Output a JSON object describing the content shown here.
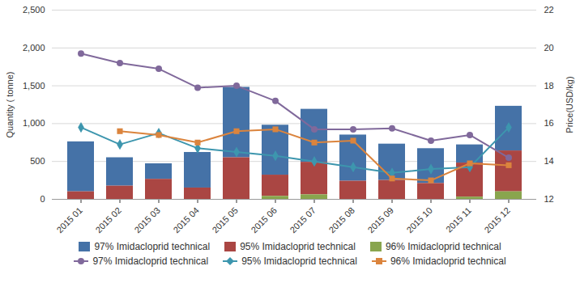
{
  "chart_data": {
    "type": "bar",
    "stacked": true,
    "grid": true,
    "legend": "bottom",
    "y_label": "Quantity ( tonne)",
    "y2_label": "Price(USD/kg)",
    "categories": [
      "2015 01",
      "2015 02",
      "2015 03",
      "2015 04",
      "2015 05",
      "2015 06",
      "2015 07",
      "2015 08",
      "2015 09",
      "2015 10",
      "2015 11",
      "2015 12"
    ],
    "ylim": [
      0,
      2500
    ],
    "yticks": [
      0,
      500,
      {
        "value": 1000,
        "label": "1,000"
      },
      {
        "value": 1500,
        "label": "1,500"
      },
      {
        "value": 2000,
        "label": "2,000"
      },
      {
        "value": 2500,
        "label": "2,500"
      }
    ],
    "y2lim": [
      12,
      22
    ],
    "y2ticks": [
      12,
      14,
      16,
      18,
      20,
      22
    ],
    "series": [
      {
        "name": "97% Imidacloprid technical",
        "type": "bar",
        "color": "#4572A7",
        "values": [
          660,
          375,
          205,
          470,
          930,
          660,
          700,
          610,
          480,
          460,
          240,
          590
        ]
      },
      {
        "name": "95% Imidacloprid technical",
        "type": "bar",
        "color": "#AA4643",
        "values": [
          100,
          175,
          265,
          150,
          550,
          280,
          430,
          240,
          250,
          210,
          450,
          540
        ]
      },
      {
        "name": "96% Imidacloprid technical",
        "type": "bar",
        "color": "#89A54E",
        "values": [
          0,
          0,
          0,
          0,
          0,
          40,
          60,
          0,
          0,
          0,
          30,
          100
        ]
      },
      {
        "name": "97% Imidacloprid technical",
        "type": "line",
        "axis": "y2",
        "marker": "circle",
        "color": "#80699B",
        "values": [
          19.7,
          19.2,
          18.9,
          17.9,
          18.0,
          17.2,
          15.7,
          15.7,
          15.75,
          15.1,
          15.4,
          14.2
        ]
      },
      {
        "name": "95% Imidacloprid technical",
        "type": "line",
        "axis": "y2",
        "marker": "diamond",
        "color": "#3D96AE",
        "values": [
          15.8,
          14.9,
          15.5,
          14.7,
          14.5,
          14.3,
          14.0,
          13.7,
          13.4,
          13.6,
          13.7,
          15.8
        ]
      },
      {
        "name": "96% Imidacloprid technical",
        "type": "line",
        "axis": "y2",
        "marker": "square",
        "color": "#DB843D",
        "values": [
          null,
          15.6,
          15.4,
          15.0,
          15.6,
          15.7,
          15.0,
          15.1,
          13.1,
          13.0,
          13.9,
          13.8
        ]
      }
    ]
  }
}
